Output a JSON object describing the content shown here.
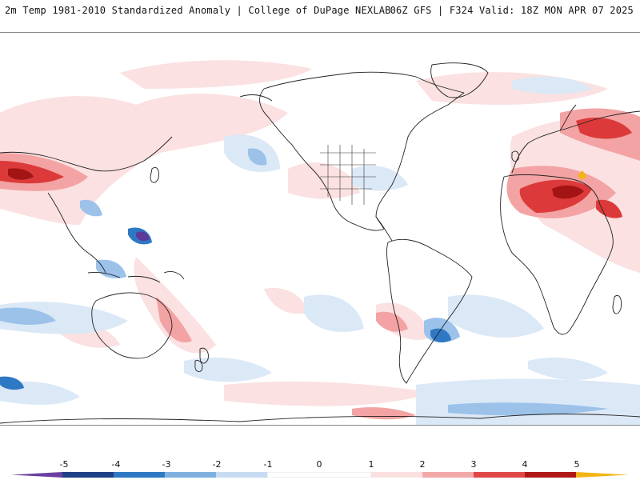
{
  "header": {
    "title_left": "2m Temp 1981-2010 Standardized Anomaly | College of DuPage NEXLAB",
    "title_right": "06Z GFS | F324 Valid: 18Z MON APR 07 2025"
  },
  "colorbar": {
    "ticks": [
      "-5",
      "-4",
      "-3",
      "-2",
      "-1",
      "0",
      "1",
      "2",
      "3",
      "4",
      "5"
    ],
    "colors": [
      "#6a3fa0",
      "#1f3f86",
      "#2f78c4",
      "#7fb0e0",
      "#c7dcf2",
      "#ffffff",
      "#fbe0e0",
      "#f3a8a8",
      "#e04848",
      "#b01818",
      "#7a0a0a",
      "#f3b418"
    ]
  },
  "map": {
    "colors": {
      "ocean": "#ffffff",
      "warm_light": "#fbe1e1",
      "warm_mid": "#f3a3a3",
      "warm_strong": "#dc3a3a",
      "warm_extreme": "#a31414",
      "cool_light": "#dbe8f6",
      "cool_mid": "#9cc2ea",
      "cool_strong": "#2f78c4",
      "cool_extreme": "#5b3a9a",
      "coast": "#222222"
    }
  }
}
